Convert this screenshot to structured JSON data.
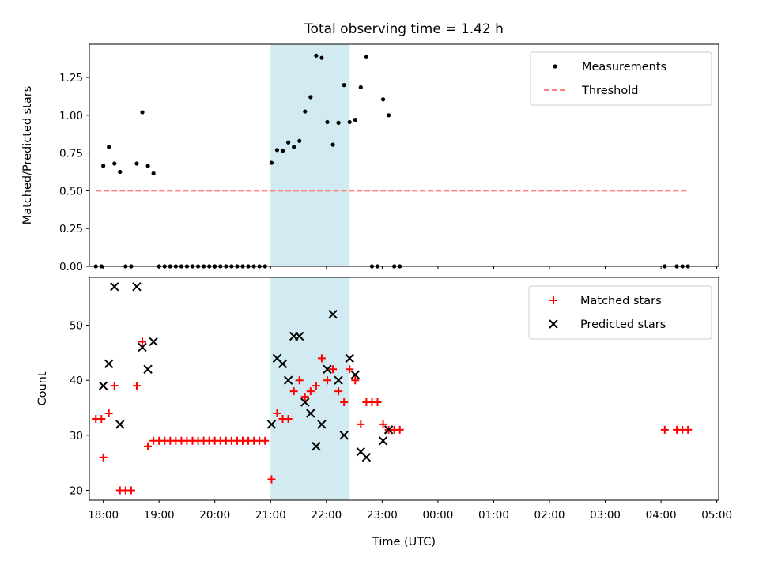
{
  "chart_data": {
    "type": "scatter",
    "title": "Total observing time = 1.42 h",
    "xlabel": "Time (UTC)",
    "xlim": [
      "17:45",
      "05:02"
    ],
    "x_ticks": [
      "18:00",
      "19:00",
      "20:00",
      "21:00",
      "22:00",
      "23:00",
      "00:00",
      "01:00",
      "02:00",
      "03:00",
      "04:00",
      "05:00"
    ],
    "highlight_span": [
      "21:00",
      "22:25"
    ],
    "highlight_color": "#add8e6",
    "panels": [
      {
        "ylabel": "Matched/Predicted stars",
        "ylim": [
          0,
          1.47
        ],
        "y_ticks": [
          "0.00",
          "0.25",
          "0.50",
          "0.75",
          "1.00",
          "1.25"
        ],
        "legend_position": "top-right",
        "series": [
          {
            "name": "Measurements",
            "marker": "dot",
            "color": "#000000",
            "points": [
              [
                "17:52",
                0
              ],
              [
                "17:58",
                0
              ],
              [
                "18:00",
                0.665
              ],
              [
                "18:06",
                0.79
              ],
              [
                "18:12",
                0.68
              ],
              [
                "18:18",
                0.625
              ],
              [
                "18:24",
                0
              ],
              [
                "18:30",
                0
              ],
              [
                "18:36",
                0.68
              ],
              [
                "18:42",
                1.02
              ],
              [
                "18:48",
                0.665
              ],
              [
                "18:54",
                0.615
              ],
              [
                "19:00",
                0
              ],
              [
                "19:06",
                0
              ],
              [
                "19:12",
                0
              ],
              [
                "19:18",
                0
              ],
              [
                "19:24",
                0
              ],
              [
                "19:30",
                0
              ],
              [
                "19:36",
                0
              ],
              [
                "19:42",
                0
              ],
              [
                "19:48",
                0
              ],
              [
                "19:54",
                0
              ],
              [
                "20:00",
                0
              ],
              [
                "20:06",
                0
              ],
              [
                "20:12",
                0
              ],
              [
                "20:18",
                0
              ],
              [
                "20:24",
                0
              ],
              [
                "20:30",
                0
              ],
              [
                "20:36",
                0
              ],
              [
                "20:42",
                0
              ],
              [
                "20:48",
                0
              ],
              [
                "20:54",
                0
              ],
              [
                "21:01",
                0.685
              ],
              [
                "21:07",
                0.77
              ],
              [
                "21:13",
                0.765
              ],
              [
                "21:19",
                0.82
              ],
              [
                "21:25",
                0.79
              ],
              [
                "21:31",
                0.83
              ],
              [
                "21:37",
                1.025
              ],
              [
                "21:43",
                1.12
              ],
              [
                "21:49",
                1.395
              ],
              [
                "21:55",
                1.38
              ],
              [
                "22:01",
                0.955
              ],
              [
                "22:07",
                0.805
              ],
              [
                "22:13",
                0.95
              ],
              [
                "22:19",
                1.2
              ],
              [
                "22:25",
                0.955
              ],
              [
                "22:31",
                0.97
              ],
              [
                "22:37",
                1.185
              ],
              [
                "22:43",
                1.385
              ],
              [
                "22:49",
                0
              ],
              [
                "22:55",
                0
              ],
              [
                "23:01",
                1.105
              ],
              [
                "23:07",
                1.0
              ],
              [
                "23:13",
                0
              ],
              [
                "23:19",
                0
              ],
              [
                "04:04",
                0
              ],
              [
                "04:17",
                0
              ],
              [
                "04:23",
                0
              ],
              [
                "04:29",
                0
              ]
            ]
          },
          {
            "name": "Threshold",
            "marker": "dashed-line",
            "color": "#ff7f7f",
            "points": [
              [
                "17:52",
                0.5
              ],
              [
                "04:29",
                0.5
              ]
            ]
          }
        ]
      },
      {
        "ylabel": "Count",
        "ylim": [
          18.2,
          58.7
        ],
        "y_ticks": [
          "20",
          "30",
          "40",
          "50"
        ],
        "legend_position": "top-right",
        "series": [
          {
            "name": "Matched stars",
            "marker": "plus",
            "color": "#ff0000",
            "points": [
              [
                "17:52",
                33
              ],
              [
                "17:58",
                33
              ],
              [
                "18:00",
                26
              ],
              [
                "18:06",
                34
              ],
              [
                "18:12",
                39
              ],
              [
                "18:18",
                20
              ],
              [
                "18:24",
                20
              ],
              [
                "18:30",
                20
              ],
              [
                "18:36",
                39
              ],
              [
                "18:42",
                47
              ],
              [
                "18:48",
                28
              ],
              [
                "18:54",
                29
              ],
              [
                "19:00",
                29
              ],
              [
                "19:06",
                29
              ],
              [
                "19:12",
                29
              ],
              [
                "19:18",
                29
              ],
              [
                "19:24",
                29
              ],
              [
                "19:30",
                29
              ],
              [
                "19:36",
                29
              ],
              [
                "19:42",
                29
              ],
              [
                "19:48",
                29
              ],
              [
                "19:54",
                29
              ],
              [
                "20:00",
                29
              ],
              [
                "20:06",
                29
              ],
              [
                "20:12",
                29
              ],
              [
                "20:18",
                29
              ],
              [
                "20:24",
                29
              ],
              [
                "20:30",
                29
              ],
              [
                "20:36",
                29
              ],
              [
                "20:42",
                29
              ],
              [
                "20:48",
                29
              ],
              [
                "20:54",
                29
              ],
              [
                "21:01",
                22
              ],
              [
                "21:07",
                34
              ],
              [
                "21:13",
                33
              ],
              [
                "21:19",
                33
              ],
              [
                "21:25",
                38
              ],
              [
                "21:31",
                40
              ],
              [
                "21:37",
                37
              ],
              [
                "21:43",
                38
              ],
              [
                "21:49",
                39
              ],
              [
                "21:55",
                44
              ],
              [
                "22:01",
                40
              ],
              [
                "22:07",
                42
              ],
              [
                "22:13",
                38
              ],
              [
                "22:19",
                36
              ],
              [
                "22:25",
                42
              ],
              [
                "22:31",
                40
              ],
              [
                "22:37",
                32
              ],
              [
                "22:43",
                36
              ],
              [
                "22:49",
                36
              ],
              [
                "22:55",
                36
              ],
              [
                "23:01",
                32
              ],
              [
                "23:07",
                31
              ],
              [
                "23:13",
                31
              ],
              [
                "23:19",
                31
              ],
              [
                "04:04",
                31
              ],
              [
                "04:17",
                31
              ],
              [
                "04:23",
                31
              ],
              [
                "04:29",
                31
              ]
            ]
          },
          {
            "name": "Predicted stars",
            "marker": "x",
            "color": "#000000",
            "points": [
              [
                "18:00",
                39
              ],
              [
                "18:06",
                43
              ],
              [
                "18:12",
                57
              ],
              [
                "18:18",
                32
              ],
              [
                "18:36",
                57
              ],
              [
                "18:42",
                46
              ],
              [
                "18:48",
                42
              ],
              [
                "18:54",
                47
              ],
              [
                "21:01",
                32
              ],
              [
                "21:07",
                44
              ],
              [
                "21:13",
                43
              ],
              [
                "21:19",
                40
              ],
              [
                "21:25",
                48
              ],
              [
                "21:31",
                48
              ],
              [
                "21:37",
                36
              ],
              [
                "21:43",
                34
              ],
              [
                "21:49",
                28
              ],
              [
                "21:55",
                32
              ],
              [
                "22:01",
                42
              ],
              [
                "22:07",
                52
              ],
              [
                "22:13",
                40
              ],
              [
                "22:19",
                30
              ],
              [
                "22:25",
                44
              ],
              [
                "22:31",
                41
              ],
              [
                "22:37",
                27
              ],
              [
                "22:43",
                26
              ],
              [
                "23:01",
                29
              ],
              [
                "23:07",
                31
              ]
            ]
          }
        ]
      }
    ]
  }
}
